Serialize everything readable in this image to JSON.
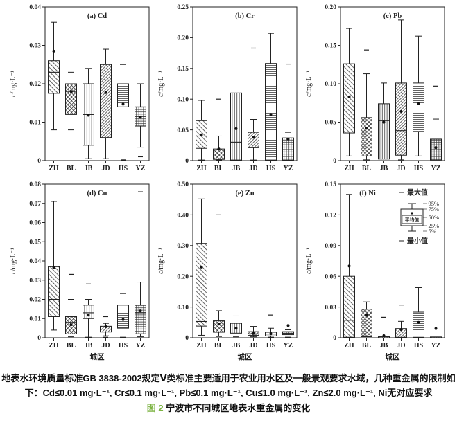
{
  "colors": {
    "ink": "#222222",
    "figure_label_green": "#7cb342",
    "background": "#ffffff"
  },
  "legend": {
    "max_label": "最大值",
    "min_label": "最小值",
    "mean_label": "平均值",
    "percent_labels": [
      "95%",
      "75%",
      "50%",
      "25%",
      "5%"
    ]
  },
  "pattern_by_district": {
    "ZH": "diagonal-down",
    "BL": "checker",
    "JB": "vertical",
    "JD": "diagonal-up",
    "HS": "horizontal",
    "YZ": "grid"
  },
  "caption": {
    "line1": "地表水环境质量标准GB 3838-2002规定Ⅴ类标准主要适用于农业用水区及一般景观要求水域，几种重金属的限制如",
    "line2": "下：Cd≤0.01 mg·L⁻¹, Cr≤0.1 mg·L⁻¹, Pb≤0.1 mg·L⁻¹, Cu≤1.0 mg·L⁻¹, Zn≤2.0 mg·L⁻¹, Ni无对应要求",
    "fig_label": "图 2",
    "fig_title": "宁波市不同城区地表水重金属的变化"
  },
  "chart_data": [
    {
      "type": "box",
      "title": "(a) Cd",
      "ylabel": "c/mg·L⁻¹",
      "xlabel": null,
      "ylim": [
        0,
        0.04
      ],
      "yticks": [
        0,
        0.01,
        0.02,
        0.03,
        0.04
      ],
      "ytick_labels": [
        "0",
        "0.01",
        "0.02",
        "0.03",
        "0.04"
      ],
      "categories": [
        "ZH",
        "BL",
        "JB",
        "JD",
        "HS",
        "YZ"
      ],
      "boxes": [
        {
          "category": "ZH",
          "whisker_low": 0.008,
          "q1": 0.0175,
          "median": 0.023,
          "q3": 0.026,
          "whisker_high": 0.036,
          "mean": 0.0285,
          "min_dash": null,
          "max_dash": null
        },
        {
          "category": "BL",
          "whisker_low": 0.008,
          "q1": 0.012,
          "median": 0.018,
          "q3": 0.02,
          "whisker_high": 0.023,
          "mean": 0.018,
          "min_dash": null,
          "max_dash": null
        },
        {
          "category": "JB",
          "whisker_low": 0.0005,
          "q1": 0.004,
          "median": 0.012,
          "q3": 0.02,
          "whisker_high": 0.024,
          "mean": 0.0118,
          "min_dash": null,
          "max_dash": null
        },
        {
          "category": "JD",
          "whisker_low": 0.0005,
          "q1": 0.006,
          "median": 0.021,
          "q3": 0.025,
          "whisker_high": 0.029,
          "mean": 0.0177,
          "min_dash": null,
          "max_dash": null
        },
        {
          "category": "HS",
          "whisker_low": null,
          "q1": 0.014,
          "median": null,
          "q3": 0.02,
          "whisker_high": 0.025,
          "mean": 0.0147,
          "min_dash": 0.0002,
          "max_dash": null
        },
        {
          "category": "YZ",
          "whisker_low": 0.0035,
          "q1": 0.009,
          "median": 0.0115,
          "q3": 0.014,
          "whisker_high": 0.02,
          "mean": 0.0113,
          "min_dash": 0.001,
          "max_dash": null
        }
      ]
    },
    {
      "type": "box",
      "title": "(b) Cr",
      "ylabel": "c/mg·L⁻¹",
      "xlabel": null,
      "ylim": [
        0,
        0.25
      ],
      "yticks": [
        0,
        0.05,
        0.1,
        0.15,
        0.2,
        0.25
      ],
      "ytick_labels": [
        "0",
        "0.05",
        "0.10",
        "0.15",
        "0.20",
        "0.25"
      ],
      "categories": [
        "ZH",
        "BL",
        "JB",
        "JD",
        "HS",
        "YZ"
      ],
      "boxes": [
        {
          "category": "ZH",
          "whisker_low": 0.001,
          "q1": 0.02,
          "median": 0.04,
          "q3": 0.065,
          "whisker_high": 0.098,
          "mean": 0.042,
          "min_dash": null,
          "max_dash": null
        },
        {
          "category": "BL",
          "whisker_low": 0.001,
          "q1": 0.002,
          "median": null,
          "q3": 0.019,
          "whisker_high": 0.04,
          "mean": 0.019,
          "min_dash": null,
          "max_dash": 0.1
        },
        {
          "category": "JB",
          "whisker_low": null,
          "q1": 0.001,
          "median": 0.03,
          "q3": 0.11,
          "whisker_high": 0.183,
          "mean": 0.052,
          "min_dash": null,
          "max_dash": null
        },
        {
          "category": "JD",
          "whisker_low": 0.001,
          "q1": 0.021,
          "median": null,
          "q3": 0.046,
          "whisker_high": 0.067,
          "mean": 0.038,
          "min_dash": null,
          "max_dash": 0.183
        },
        {
          "category": "HS",
          "whisker_low": null,
          "q1": 0.001,
          "median": null,
          "q3": 0.158,
          "whisker_high": 0.207,
          "mean": 0.075,
          "min_dash": null,
          "max_dash": null
        },
        {
          "category": "YZ",
          "whisker_low": null,
          "q1": 0.001,
          "median": null,
          "q3": 0.037,
          "whisker_high": 0.046,
          "mean": 0.035,
          "min_dash": null,
          "max_dash": 0.157
        }
      ]
    },
    {
      "type": "box",
      "title": "(c) Pb",
      "ylabel": "c/mg·L⁻¹",
      "xlabel": null,
      "ylim": [
        0,
        0.2
      ],
      "yticks": [
        0,
        0.05,
        0.1,
        0.15,
        0.2
      ],
      "ytick_labels": [
        "0",
        "0.05",
        "0.10",
        "0.15",
        "0.20"
      ],
      "categories": [
        "ZH",
        "BL",
        "JB",
        "JD",
        "HS",
        "YZ"
      ],
      "boxes": [
        {
          "category": "ZH",
          "whisker_low": 0.006,
          "q1": 0.036,
          "median": null,
          "q3": 0.126,
          "whisker_high": 0.172,
          "mean": 0.083,
          "min_dash": null,
          "max_dash": null
        },
        {
          "category": "BL",
          "whisker_low": 0.001,
          "q1": 0.006,
          "median": null,
          "q3": 0.056,
          "whisker_high": 0.113,
          "mean": 0.042,
          "min_dash": null,
          "max_dash": 0.144
        },
        {
          "category": "JB",
          "whisker_low": null,
          "q1": 0.002,
          "median": 0.052,
          "q3": 0.074,
          "whisker_high": 0.101,
          "mean": 0.05,
          "min_dash": null,
          "max_dash": null
        },
        {
          "category": "JD",
          "whisker_low": 0.001,
          "q1": 0.007,
          "median": 0.039,
          "q3": 0.101,
          "whisker_high": 0.183,
          "mean": 0.064,
          "min_dash": null,
          "max_dash": null
        },
        {
          "category": "HS",
          "whisker_low": 0.006,
          "q1": 0.038,
          "median": null,
          "q3": 0.101,
          "whisker_high": 0.162,
          "mean": 0.074,
          "min_dash": null,
          "max_dash": null
        },
        {
          "category": "YZ",
          "whisker_low": null,
          "q1": 0.001,
          "median": null,
          "q3": 0.028,
          "whisker_high": 0.054,
          "mean": 0.017,
          "min_dash": null,
          "max_dash": 0.097
        }
      ]
    },
    {
      "type": "box",
      "title": "(d) Cu",
      "ylabel": "c/mg·L⁻¹",
      "xlabel": "城区",
      "ylim": [
        0,
        0.08
      ],
      "yticks": [
        0,
        0.01,
        0.02,
        0.03,
        0.04,
        0.05,
        0.06,
        0.07,
        0.08
      ],
      "ytick_labels": [
        "0",
        "0.01",
        "0.02",
        "0.03",
        "0.04",
        "0.05",
        "0.06",
        "0.07",
        "0.08"
      ],
      "categories": [
        "ZH",
        "BL",
        "JB",
        "JD",
        "HS",
        "YZ"
      ],
      "boxes": [
        {
          "category": "ZH",
          "whisker_low": 0.004,
          "q1": 0.011,
          "median": 0.02,
          "q3": 0.037,
          "whisker_high": 0.071,
          "mean": 0.0365,
          "min_dash": null,
          "max_dash": null
        },
        {
          "category": "BL",
          "whisker_low": 0.0005,
          "q1": 0.002,
          "median": 0.008,
          "q3": 0.011,
          "whisker_high": 0.02,
          "mean": 0.0068,
          "min_dash": null,
          "max_dash": 0.033
        },
        {
          "category": "JB",
          "whisker_low": 0.0003,
          "q1": 0.01,
          "median": 0.013,
          "q3": 0.017,
          "whisker_high": 0.02,
          "mean": 0.0118,
          "min_dash": null,
          "max_dash": 0.028
        },
        {
          "category": "JD",
          "whisker_low": 0.001,
          "q1": 0.003,
          "median": null,
          "q3": 0.006,
          "whisker_high": 0.0075,
          "mean": 0.0058,
          "min_dash": 0.0003,
          "max_dash": 0.011
        },
        {
          "category": "HS",
          "whisker_low": 0.0003,
          "q1": 0.005,
          "median": null,
          "q3": 0.017,
          "whisker_high": 0.023,
          "mean": 0.0095,
          "min_dash": null,
          "max_dash": null
        },
        {
          "category": "YZ",
          "whisker_low": 0.0005,
          "q1": 0.002,
          "median": 0.013,
          "q3": 0.017,
          "whisker_high": 0.029,
          "mean": 0.014,
          "min_dash": null,
          "max_dash": 0.076
        }
      ]
    },
    {
      "type": "box",
      "title": "(e) Zn",
      "ylabel": "c/mg·L⁻¹",
      "xlabel": "城区",
      "ylim": [
        0,
        0.5
      ],
      "yticks": [
        0,
        0.1,
        0.2,
        0.3,
        0.4,
        0.5
      ],
      "ytick_labels": [
        "0",
        "0.10",
        "0.20",
        "0.30",
        "0.40",
        "0.50"
      ],
      "categories": [
        "ZH",
        "BL",
        "JB",
        "JD",
        "HS",
        "YZ"
      ],
      "boxes": [
        {
          "category": "ZH",
          "whisker_low": 0.008,
          "q1": 0.038,
          "median": 0.053,
          "q3": 0.307,
          "whisker_high": 0.452,
          "mean": 0.23,
          "min_dash": null,
          "max_dash": null
        },
        {
          "category": "BL",
          "whisker_low": 0.004,
          "q1": 0.018,
          "median": null,
          "q3": 0.055,
          "whisker_high": 0.088,
          "mean": 0.045,
          "min_dash": null,
          "max_dash": 0.4
        },
        {
          "category": "JB",
          "whisker_low": 0.003,
          "q1": 0.015,
          "median": null,
          "q3": 0.047,
          "whisker_high": 0.071,
          "mean": 0.031,
          "min_dash": null,
          "max_dash": null
        },
        {
          "category": "JD",
          "whisker_low": 0.003,
          "q1": 0.008,
          "median": 0.013,
          "q3": 0.02,
          "whisker_high": 0.037,
          "mean": 0.014,
          "min_dash": null,
          "max_dash": null
        },
        {
          "category": "HS",
          "whisker_low": 0.002,
          "q1": 0.006,
          "median": 0.012,
          "q3": 0.018,
          "whisker_high": 0.031,
          "mean": 0.013,
          "min_dash": null,
          "max_dash": 0.074
        },
        {
          "category": "YZ",
          "whisker_low": 0.002,
          "q1": 0.01,
          "median": 0.015,
          "q3": 0.02,
          "whisker_high": 0.026,
          "mean": 0.04,
          "min_dash": null,
          "max_dash": null
        }
      ]
    },
    {
      "type": "box",
      "title": "(f) Ni",
      "ylabel": "c/mg·L⁻¹",
      "xlabel": "城区",
      "ylim": [
        0,
        0.15
      ],
      "yticks": [
        0,
        0.03,
        0.06,
        0.09,
        0.12,
        0.15
      ],
      "ytick_labels": [
        "0",
        "0.03",
        "0.06",
        "0.09",
        "0.12",
        "0.15"
      ],
      "categories": [
        "ZH",
        "BL",
        "JB",
        "JD",
        "HS",
        "YZ"
      ],
      "boxes": [
        {
          "category": "ZH",
          "whisker_low": null,
          "q1": 0.0005,
          "median": 0.017,
          "q3": 0.06,
          "whisker_high": 0.14,
          "mean": 0.07,
          "min_dash": null,
          "max_dash": null
        },
        {
          "category": "BL",
          "whisker_low": null,
          "q1": 0.001,
          "median": null,
          "q3": 0.028,
          "whisker_high": 0.035,
          "mean": 0.022,
          "min_dash": null,
          "max_dash": null
        },
        {
          "category": "JB",
          "whisker_low": null,
          "q1": 0.0,
          "median": null,
          "q3": 0.001,
          "whisker_high": null,
          "mean": 0.002,
          "min_dash": null,
          "max_dash": 0.02
        },
        {
          "category": "JD",
          "whisker_low": null,
          "q1": 0.0005,
          "median": null,
          "q3": 0.009,
          "whisker_high": 0.016,
          "mean": 0.008,
          "min_dash": null,
          "max_dash": 0.032
        },
        {
          "category": "HS",
          "whisker_low": null,
          "q1": 0.0005,
          "median": null,
          "q3": 0.025,
          "whisker_high": 0.049,
          "mean": 0.015,
          "min_dash": null,
          "max_dash": null
        },
        {
          "category": "YZ",
          "whisker_low": null,
          "q1": 0.0,
          "median": null,
          "q3": 0.0008,
          "whisker_high": null,
          "mean": 0.009,
          "min_dash": null,
          "max_dash": null
        }
      ]
    }
  ]
}
